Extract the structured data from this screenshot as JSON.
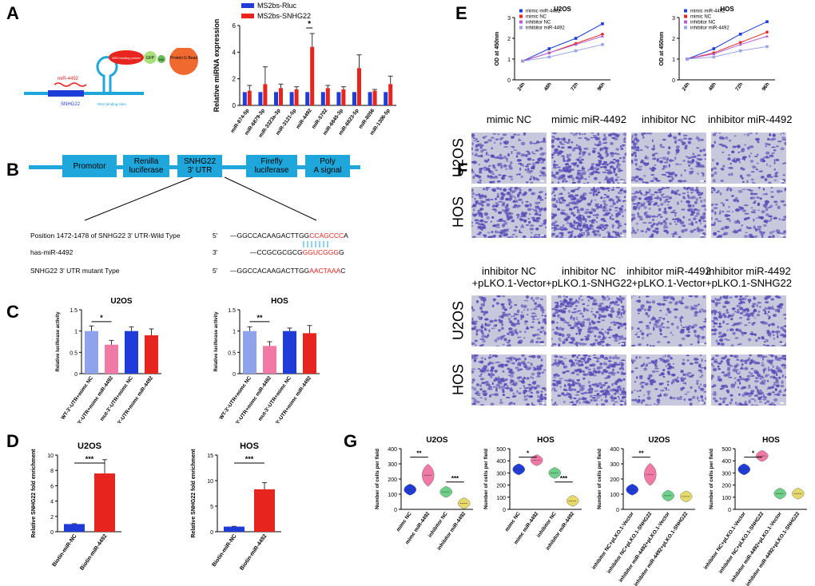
{
  "panels": {
    "a": "A",
    "b": "B",
    "c": "C",
    "d": "D",
    "e": "E",
    "f": "F",
    "g": "G"
  },
  "colors": {
    "blue": "#1f3bd8",
    "red": "#e8241f",
    "lightblue": "#8fa3ec",
    "pink": "#f07aa5",
    "green": "#6fd08a",
    "yellow": "#e6d96a",
    "cyan": "#1fa6da",
    "stain": "#5a4fb8"
  },
  "panel_a": {
    "schematic": {
      "mirna": "miR-4492",
      "snhg22": "SNHG22",
      "ms2": "MS2 binding sites",
      "fusion": "MS2 binding protein",
      "gfp": "GFP",
      "ha": "HA",
      "bead": "Protein G Bead"
    },
    "chart_data": {
      "type": "bar",
      "title": "",
      "ylabel": "Relative miRNA expression",
      "ylim": [
        0,
        6
      ],
      "yticks": [
        0,
        2,
        4,
        6
      ],
      "categories": [
        "miR-874-5p",
        "miR-6879-3p",
        "miR-3323a-3p",
        "miR-3121-5p",
        "miR-4492",
        "miR-5702",
        "miR-6845-3p",
        "miR-6823-5p",
        "miR-8056",
        "miR-1306-5p"
      ],
      "series": [
        {
          "name": "MS2bs-Rluc",
          "values": [
            1,
            1,
            1,
            1,
            1,
            1,
            1,
            1,
            1,
            1
          ],
          "errors": [
            0,
            0,
            0,
            0,
            0,
            0,
            0,
            0,
            0,
            0
          ]
        },
        {
          "name": "MS2bs-SNHG22",
          "values": [
            1.1,
            1.6,
            1.3,
            1.2,
            4.4,
            1.3,
            1.2,
            2.8,
            1.1,
            1.6
          ],
          "errors": [
            0.4,
            1.3,
            0.3,
            0.2,
            1.0,
            0.2,
            0.2,
            1.0,
            0.1,
            0.6
          ]
        }
      ],
      "annotations": [
        "*"
      ]
    }
  },
  "panel_b": {
    "boxes": [
      "Promotor",
      "Renilla luciferase",
      "SNHG22 3' UTR",
      "Firefly luciferase",
      "Poly A signal"
    ],
    "rows": [
      {
        "label": "Position 1472-1478 of  SNHG22 3'  UTR-Wild Type",
        "prime": "5'",
        "seq_a": "—GGCCACAAGACTTGG",
        "seq_b": "CCAGCCC",
        "seq_c": "A"
      },
      {
        "label": "has-miR-4492",
        "prime": "3'",
        "seq_a": "—CCGCGCGCG",
        "seq_b": "GGUCGGG",
        "seq_c": "G"
      },
      {
        "label": "SNHG22  3'  UTR mutant Type",
        "prime": "5'",
        "seq_a": "—GGCCACAAGACTTGG",
        "seq_b": "AACTAAA",
        "seq_c": "C"
      }
    ]
  },
  "panel_c": {
    "chart_data": [
      {
        "type": "bar",
        "title": "U2OS",
        "ylabel": "Relative luciferase activity",
        "ylim": [
          0,
          1.5
        ],
        "yticks": [
          0.0,
          0.5,
          1.0,
          1.5
        ],
        "categories": [
          "WT-3'-UTR+mimc NC",
          "WT-3'-UTR+mimc miR-4492",
          "mut-3'-UTR+mimc NC",
          "mut-3'-UTR+mimc miR-4492"
        ],
        "values": [
          1.0,
          0.68,
          1.0,
          0.9
        ],
        "errors": [
          0.12,
          0.1,
          0.1,
          0.15
        ],
        "annotations": [
          "*"
        ]
      },
      {
        "type": "bar",
        "title": "HOS",
        "ylabel": "Relative luciferase activity",
        "ylim": [
          0,
          1.5
        ],
        "yticks": [
          0.0,
          0.5,
          1.0,
          1.5
        ],
        "categories": [
          "WT-3'-UTR+mimc NC",
          "WT-3'-UTR+mimc miR-4492",
          "mut-3'-UTR+mimc NC",
          "mut-3'-UTR+mimc miR-4492"
        ],
        "values": [
          1.0,
          0.65,
          1.0,
          0.95
        ],
        "errors": [
          0.1,
          0.1,
          0.07,
          0.18
        ],
        "annotations": [
          "**"
        ]
      }
    ]
  },
  "panel_d": {
    "chart_data": [
      {
        "type": "bar",
        "title": "U2OS",
        "ylabel": "Relative SNHG22 fold enrichment",
        "ylim": [
          0,
          10
        ],
        "yticks": [
          0,
          2,
          4,
          6,
          8,
          10
        ],
        "categories": [
          "Biotin-miR-NC",
          "Biotin-miR-4492"
        ],
        "values": [
          1.0,
          7.6
        ],
        "errors": [
          0.05,
          1.8
        ],
        "annotations": [
          "***"
        ]
      },
      {
        "type": "bar",
        "title": "HOS",
        "ylabel": "Relative SNHG22 fold enrichment",
        "ylim": [
          0,
          15
        ],
        "yticks": [
          0,
          5,
          10,
          15
        ],
        "categories": [
          "Biotin-miR-NC",
          "Biotin-miR-4492"
        ],
        "values": [
          1.0,
          8.3
        ],
        "errors": [
          0.05,
          1.3
        ],
        "annotations": [
          "***"
        ]
      }
    ]
  },
  "panel_e": {
    "chart_data": [
      {
        "type": "line",
        "title": "U2OS",
        "ylabel": "OD at 450nm",
        "ylim": [
          0,
          3
        ],
        "yticks": [
          0,
          1,
          2,
          3
        ],
        "x": [
          "24h",
          "48h",
          "72h",
          "96h"
        ],
        "series": [
          {
            "name": "mimic miR-4492",
            "values": [
              0.9,
              1.5,
              2.0,
              2.7
            ]
          },
          {
            "name": "mimic NC",
            "values": [
              0.9,
              1.3,
              1.75,
              2.2
            ]
          },
          {
            "name": "inhibitor NC",
            "values": [
              0.9,
              1.3,
              1.7,
              2.1
            ]
          },
          {
            "name": "inhibitor miR-4492",
            "values": [
              0.9,
              1.1,
              1.4,
              1.7
            ]
          }
        ]
      },
      {
        "type": "line",
        "title": "HOS",
        "ylabel": "OD at 450nm",
        "ylim": [
          0,
          3
        ],
        "yticks": [
          0,
          1,
          2,
          3
        ],
        "x": [
          "24h",
          "48h",
          "72h",
          "96h"
        ],
        "series": [
          {
            "name": "mimic miR-4492",
            "values": [
              1.0,
              1.5,
              2.2,
              2.8
            ]
          },
          {
            "name": "mimic NC",
            "values": [
              1.0,
              1.3,
              1.8,
              2.3
            ]
          },
          {
            "name": "inhibitor NC",
            "values": [
              1.0,
              1.25,
              1.7,
              2.1
            ]
          },
          {
            "name": "inhibitor miR-4492",
            "values": [
              1.0,
              1.1,
              1.4,
              1.6
            ]
          }
        ]
      }
    ]
  },
  "panel_f": {
    "top_headers": [
      "mimic NC",
      "mimic miR-4492",
      "inhibitor NC",
      "inhibitor miR-4492"
    ],
    "bottom_headers": [
      "inhibitor NC\n+pLKO.1-Vector",
      "inhibitor NC\n+pLKO.1-SNHG22",
      "inhibitor miR-4492\n+pLKO.1-Vector",
      "inhibitor miR-4492\n+pLKO.1-SNHG22"
    ],
    "rows": [
      "U2OS",
      "HOS"
    ],
    "density_top": [
      [
        0.5,
        0.9,
        0.5,
        0.3
      ],
      [
        0.85,
        1.0,
        0.75,
        0.4
      ]
    ],
    "density_bottom": [
      [
        0.55,
        0.9,
        0.35,
        0.6
      ],
      [
        0.8,
        1.0,
        0.45,
        0.75
      ]
    ]
  },
  "panel_g": {
    "chart_data": [
      {
        "type": "violin",
        "title": "U2OS",
        "ylabel": "Number of cells per field",
        "ylim": [
          0,
          400
        ],
        "yticks": [
          0,
          100,
          200,
          300,
          400
        ],
        "categories": [
          "mimc NC",
          "mimc miR-4492",
          "inhibitor NC",
          "inhibitor miR-4492"
        ],
        "values": [
          130,
          225,
          115,
          40
        ],
        "annotations": [
          "**",
          "***"
        ]
      },
      {
        "type": "violin",
        "title": "HOS",
        "ylabel": "Number of cells per field",
        "ylim": [
          0,
          500
        ],
        "yticks": [
          0,
          100,
          200,
          300,
          400,
          500
        ],
        "categories": [
          "mimc NC",
          "mimc miR-4492",
          "inhibitor NC",
          "inhibitor miR-4492"
        ],
        "values": [
          330,
          405,
          300,
          70
        ],
        "annotations": [
          "*",
          "***"
        ]
      },
      {
        "type": "violin",
        "title": "U2OS",
        "ylabel": "Number of cells per field",
        "ylim": [
          0,
          400
        ],
        "yticks": [
          0,
          100,
          200,
          300,
          400
        ],
        "categories": [
          "inhibitor NC+pLKO.1-Vector",
          "inhibitor NC+pLKO.1-SNHG22",
          "inhibitor miR-4492+pLKO.1-Vector",
          "inhibitor miR-4492+pLKO.1-SNHG22"
        ],
        "values": [
          130,
          230,
          90,
          85
        ],
        "annotations": [
          "**"
        ]
      },
      {
        "type": "violin",
        "title": "HOS",
        "ylabel": "Number of cells per field",
        "ylim": [
          0,
          500
        ],
        "yticks": [
          0,
          100,
          200,
          300,
          400,
          500
        ],
        "categories": [
          "inhibitor NC+pLKO.1-Vector",
          "inhibitor NC+pLKO.1-SNHG22",
          "inhibitor miR-4492+pLKO.1-Vector",
          "inhibitor miR-4492+pLKO.1-SNHG22"
        ],
        "values": [
          330,
          440,
          130,
          130
        ],
        "annotations": [
          "*"
        ]
      }
    ]
  }
}
